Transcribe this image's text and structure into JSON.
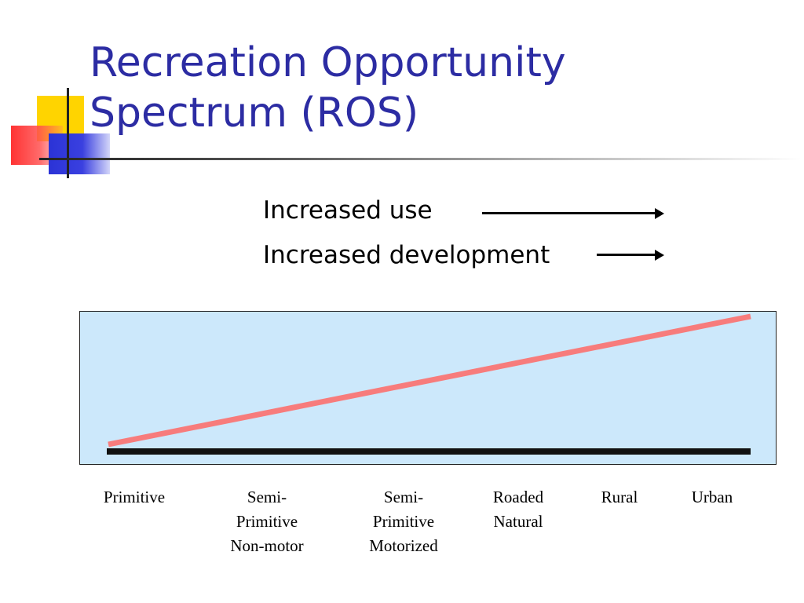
{
  "slide": {
    "title": "Recreation Opportunity Spectrum (ROS)"
  },
  "legend": {
    "use_label": "Increased use",
    "development_label": "Increased development"
  },
  "spectrum": {
    "categories": [
      "Primitive",
      "Semi-\nPrimitive\nNon-motor",
      "Semi-\nPrimitive\nMotorized",
      "Roaded\nNatural",
      "Rural",
      "Urban"
    ],
    "panel_color": "#cce8fb",
    "trend_line_color": "#f77c7c",
    "base_line_color": "#111111"
  },
  "colors": {
    "title": "#2c2ca3"
  }
}
